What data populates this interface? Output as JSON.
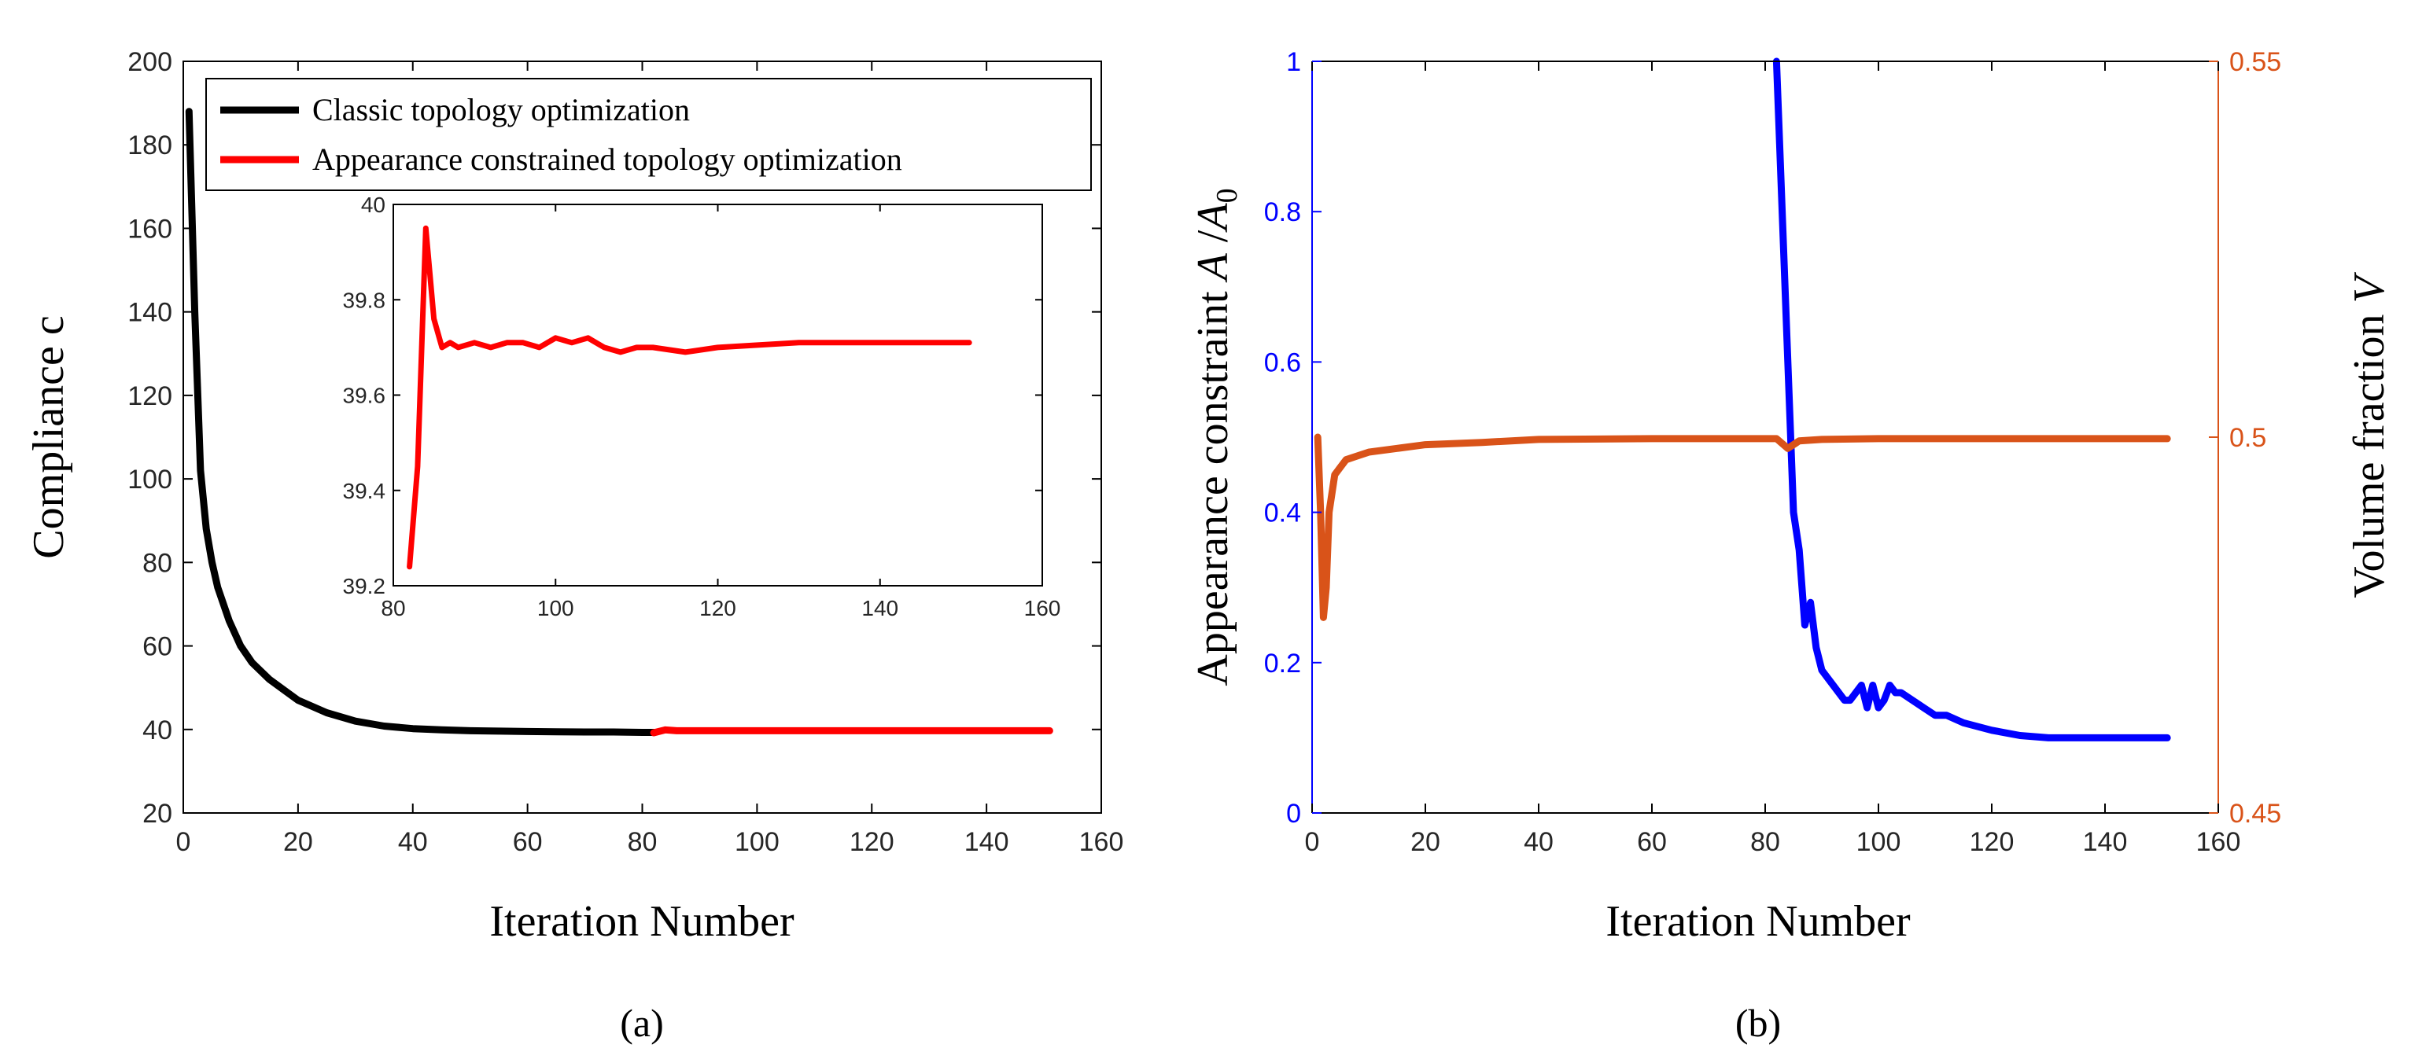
{
  "colors": {
    "classic": "#000000",
    "appearance": "#ff0000",
    "blue_series": "#0000ff",
    "volume_series": "#d95319",
    "right_axis": "#d95319"
  },
  "chart_data": [
    {
      "id": "a",
      "type": "line",
      "caption": "(a)",
      "xlabel": "Iteration Number",
      "ylabel": "Compliance  c",
      "xlim": [
        0,
        160
      ],
      "ylim": [
        20,
        200
      ],
      "xticks": [
        0,
        20,
        40,
        60,
        80,
        100,
        120,
        140,
        160
      ],
      "yticks": [
        20,
        40,
        60,
        80,
        100,
        120,
        140,
        160,
        180,
        200
      ],
      "legend": {
        "location": "top-right",
        "entries": [
          "Classic topology optimization",
          "Appearance constrained topology optimization"
        ]
      },
      "series": [
        {
          "name": "Classic topology optimization",
          "x": [
            1,
            2,
            3,
            4,
            5,
            6,
            8,
            10,
            12,
            15,
            18,
            20,
            25,
            30,
            35,
            40,
            45,
            50,
            55,
            60,
            65,
            70,
            75,
            80,
            82
          ],
          "y": [
            188,
            140,
            102,
            88,
            80,
            74,
            66,
            60,
            56,
            52,
            49,
            47,
            44,
            42,
            40.8,
            40.2,
            39.9,
            39.7,
            39.6,
            39.5,
            39.45,
            39.4,
            39.4,
            39.3,
            39.3
          ]
        },
        {
          "name": "Appearance constrained topology optimization",
          "x": [
            82,
            84,
            86,
            90,
            100,
            110,
            120,
            130,
            140,
            151
          ],
          "y": [
            39.2,
            39.9,
            39.7,
            39.7,
            39.7,
            39.7,
            39.7,
            39.7,
            39.7,
            39.7
          ]
        }
      ],
      "inset": {
        "xlim": [
          80,
          160
        ],
        "ylim": [
          39.2,
          40
        ],
        "xticks": [
          80,
          100,
          120,
          140,
          160
        ],
        "yticks": [
          39.2,
          39.4,
          39.6,
          39.8,
          40
        ],
        "series": [
          {
            "name": "Appearance constrained topology optimization",
            "x": [
              82,
              83,
              84,
              85,
              86,
              87,
              88,
              90,
              92,
              94,
              96,
              98,
              100,
              102,
              104,
              106,
              108,
              110,
              112,
              116,
              120,
              130,
              140,
              151
            ],
            "y": [
              39.24,
              39.45,
              39.95,
              39.76,
              39.7,
              39.71,
              39.7,
              39.71,
              39.7,
              39.71,
              39.71,
              39.7,
              39.72,
              39.71,
              39.72,
              39.7,
              39.69,
              39.7,
              39.7,
              39.69,
              39.7,
              39.71,
              39.71,
              39.71
            ]
          }
        ]
      }
    },
    {
      "id": "b",
      "type": "line",
      "caption": "(b)",
      "xlabel": "Iteration Number",
      "ylabel_left": "Appearance constraint  A /A0",
      "ylabel_left_parts": [
        "Appearance constraint  ",
        "A",
        " /",
        "A",
        "0"
      ],
      "ylabel_right": "Volume fraction  V",
      "ylabel_right_parts": [
        "Volume fraction  ",
        "V"
      ],
      "xlim": [
        0,
        160
      ],
      "ylim_left": [
        0,
        1
      ],
      "ylim_right": [
        0.45,
        0.55
      ],
      "xticks": [
        0,
        20,
        40,
        60,
        80,
        100,
        120,
        140,
        160
      ],
      "yticks_left": [
        0,
        0.2,
        0.4,
        0.6,
        0.8,
        1
      ],
      "yticks_right": [
        0.45,
        0.5,
        0.55
      ],
      "series": [
        {
          "name": "Appearance constraint A/A0",
          "axis": "left",
          "x": [
            82,
            83,
            84,
            85,
            86,
            87,
            88,
            89,
            90,
            92,
            94,
            95,
            96,
            97,
            98,
            99,
            100,
            101,
            102,
            103,
            104,
            106,
            108,
            110,
            112,
            115,
            120,
            125,
            130,
            140,
            151
          ],
          "y": [
            1.0,
            0.8,
            0.6,
            0.4,
            0.35,
            0.25,
            0.28,
            0.22,
            0.19,
            0.17,
            0.15,
            0.15,
            0.16,
            0.17,
            0.14,
            0.17,
            0.14,
            0.15,
            0.17,
            0.16,
            0.16,
            0.15,
            0.14,
            0.13,
            0.13,
            0.12,
            0.11,
            0.103,
            0.1,
            0.1,
            0.1
          ]
        },
        {
          "name": "Volume fraction V",
          "axis": "right",
          "x": [
            1,
            1.5,
            2,
            2.5,
            3,
            4,
            5,
            6,
            8,
            10,
            15,
            20,
            30,
            40,
            60,
            80,
            82,
            84,
            86,
            90,
            100,
            120,
            140,
            151
          ],
          "y": [
            0.5,
            0.49,
            0.476,
            0.48,
            0.49,
            0.495,
            0.496,
            0.497,
            0.4975,
            0.498,
            0.4985,
            0.499,
            0.4993,
            0.4997,
            0.4998,
            0.4998,
            0.4998,
            0.4985,
            0.4995,
            0.4997,
            0.4998,
            0.4998,
            0.4998,
            0.4998
          ]
        }
      ]
    }
  ]
}
